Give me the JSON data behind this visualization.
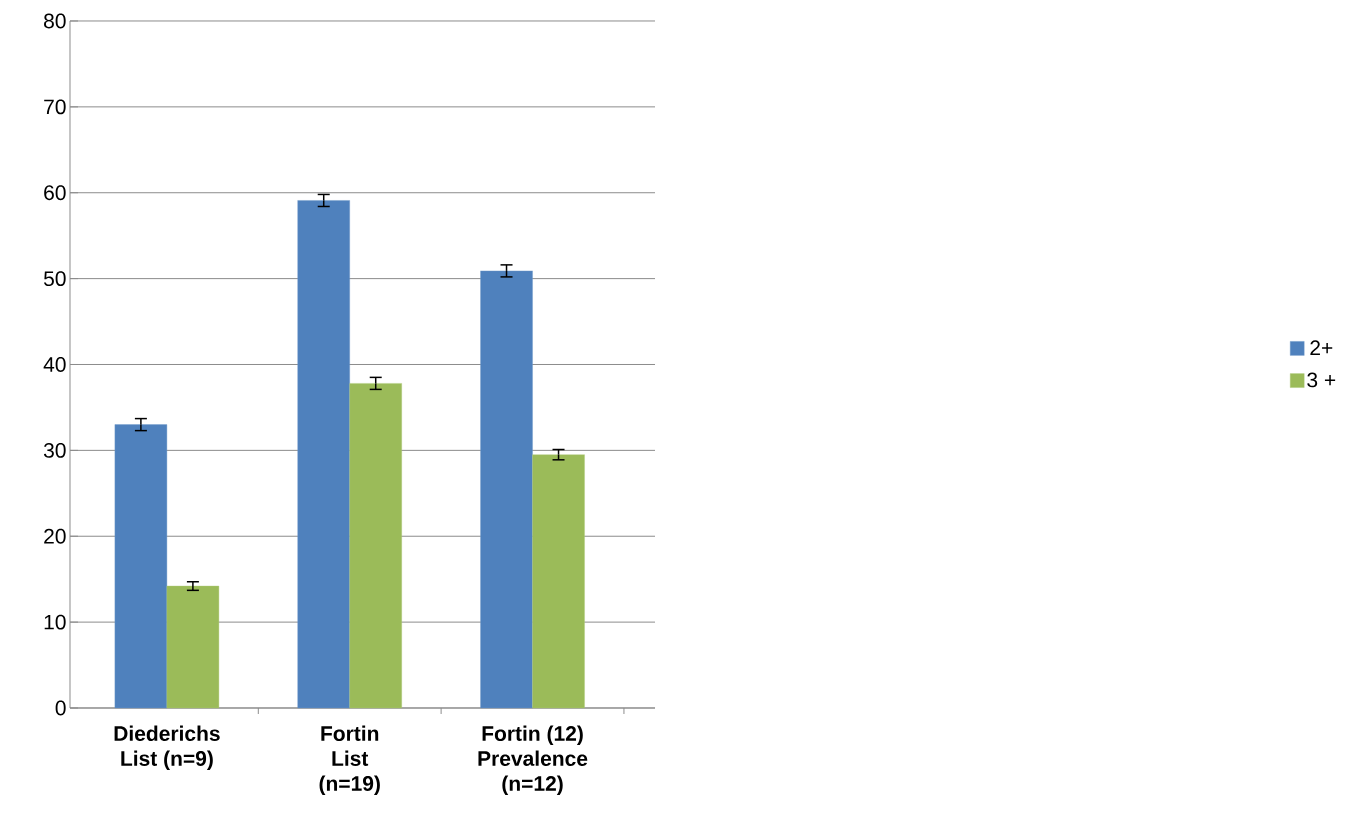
{
  "chart_data": {
    "type": "bar",
    "categories": [
      "Diederichs List (n=9)",
      "Fortin List (n=19)",
      "Fortin (12) Prevalence (n=12)"
    ],
    "series": [
      {
        "name": "2+",
        "color": "#4f81bd",
        "values": [
          33,
          59.1,
          50.9
        ],
        "errors": [
          0.7,
          0.7,
          0.7
        ]
      },
      {
        "name": "3 +",
        "color": "#9bbb59",
        "values": [
          14.2,
          37.8,
          29.5
        ],
        "errors": [
          0.5,
          0.7,
          0.6
        ]
      }
    ],
    "ylim": [
      0,
      80
    ],
    "yticks": [
      0,
      10,
      20,
      30,
      40,
      50,
      60,
      70,
      80
    ],
    "grid": "y",
    "legend": "right"
  }
}
